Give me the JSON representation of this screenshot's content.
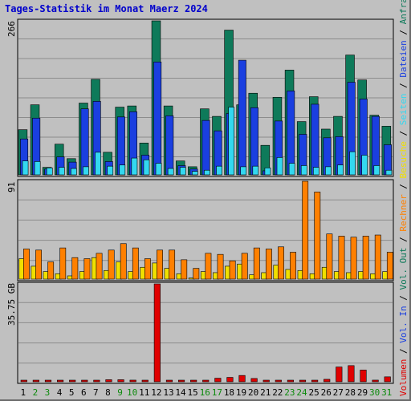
{
  "chart_data": {
    "title": "Tages-Statistik im Monat Maerz 2024",
    "days": [
      "1",
      "2",
      "3",
      "4",
      "5",
      "6",
      "7",
      "8",
      "9",
      "10",
      "11",
      "12",
      "13",
      "14",
      "15",
      "16",
      "17",
      "18",
      "19",
      "20",
      "21",
      "22",
      "23",
      "24",
      "25",
      "26",
      "27",
      "28",
      "29",
      "30",
      "31"
    ],
    "weekend_days": [
      "2",
      "3",
      "9",
      "10",
      "16",
      "17",
      "23",
      "24",
      "30",
      "31"
    ],
    "panels": [
      {
        "type": "bar",
        "ymax_label": "266",
        "ymax": 266,
        "grid": true,
        "series": [
          {
            "name": "Anfragen",
            "color": "#0e7a5a",
            "values": [
              78,
              121,
              13,
              53,
              28,
              124,
              165,
              39,
              117,
              119,
              55,
              266,
              119,
              24,
              14,
              114,
              101,
              250,
              121,
              141,
              51,
              134,
              181,
              92,
              135,
              79,
              101,
              207,
              164,
              103,
              84
            ]
          },
          {
            "name": "Dateien",
            "color": "#1a3fe0",
            "values": [
              62,
              98,
              10,
              31,
              22,
              114,
              127,
              23,
              100,
              109,
              34,
              195,
              102,
              16,
              10,
              94,
              76,
              106,
              198,
              116,
              7,
              93,
              145,
              70,
              122,
              64,
              66,
              160,
              131,
              101,
              52
            ]
          },
          {
            "name": "Seiten",
            "color": "#33d8f0",
            "values": [
              24,
              23,
              12,
              13,
              11,
              14,
              39,
              15,
              17,
              29,
              26,
              20,
              11,
              13,
              6,
              8,
              15,
              117,
              14,
              15,
              12,
              30,
              20,
              16,
              13,
              14,
              17,
              40,
              34,
              16,
              8
            ]
          }
        ]
      },
      {
        "type": "bar",
        "ymax_label": "91",
        "ymax": 91,
        "grid": true,
        "series": [
          {
            "name": "Besuche",
            "color": "#f0e000",
            "values": [
              19,
              12,
              7,
              5,
              3,
              7,
              20,
              8,
              16,
              7,
              11,
              15,
              10,
              5,
              1,
              7,
              6,
              12,
              14,
              4,
              6,
              13,
              9,
              8,
              5,
              11,
              7,
              6,
              7,
              5,
              7
            ]
          },
          {
            "name": "Rechner",
            "color": "#ff8000",
            "values": [
              28,
              27,
              16,
              29,
              20,
              19,
              24,
              27,
              33,
              29,
              19,
              27,
              27,
              18,
              10,
              24,
              23,
              17,
              24,
              29,
              28,
              30,
              25,
              91,
              81,
              42,
              40,
              39,
              40,
              41,
              25
            ]
          }
        ]
      },
      {
        "type": "bar",
        "ymax_label": "35.75 GB",
        "ymax": 35.75,
        "grid": true,
        "series": [
          {
            "name": "Volumen",
            "color": "#e00000",
            "values": [
              0.35,
              0.15,
              0.15,
              0.15,
              0.15,
              0.15,
              0.45,
              0.75,
              0.75,
              0.6,
              0.3,
              35.75,
              0.15,
              0.1,
              0.1,
              0.3,
              1.3,
              1.6,
              2.3,
              1.2,
              0.3,
              0.3,
              0.3,
              0.45,
              0.45,
              0.9,
              5.4,
              5.9,
              4.3,
              0.6,
              1.8
            ]
          }
        ]
      }
    ],
    "legend_labels": [
      "Volumen",
      "Vol. In",
      "Vol. Out",
      "Rechner",
      "Besuche",
      "Seiten",
      "Dateien",
      "Anfragen"
    ],
    "legend_separator": " / "
  }
}
